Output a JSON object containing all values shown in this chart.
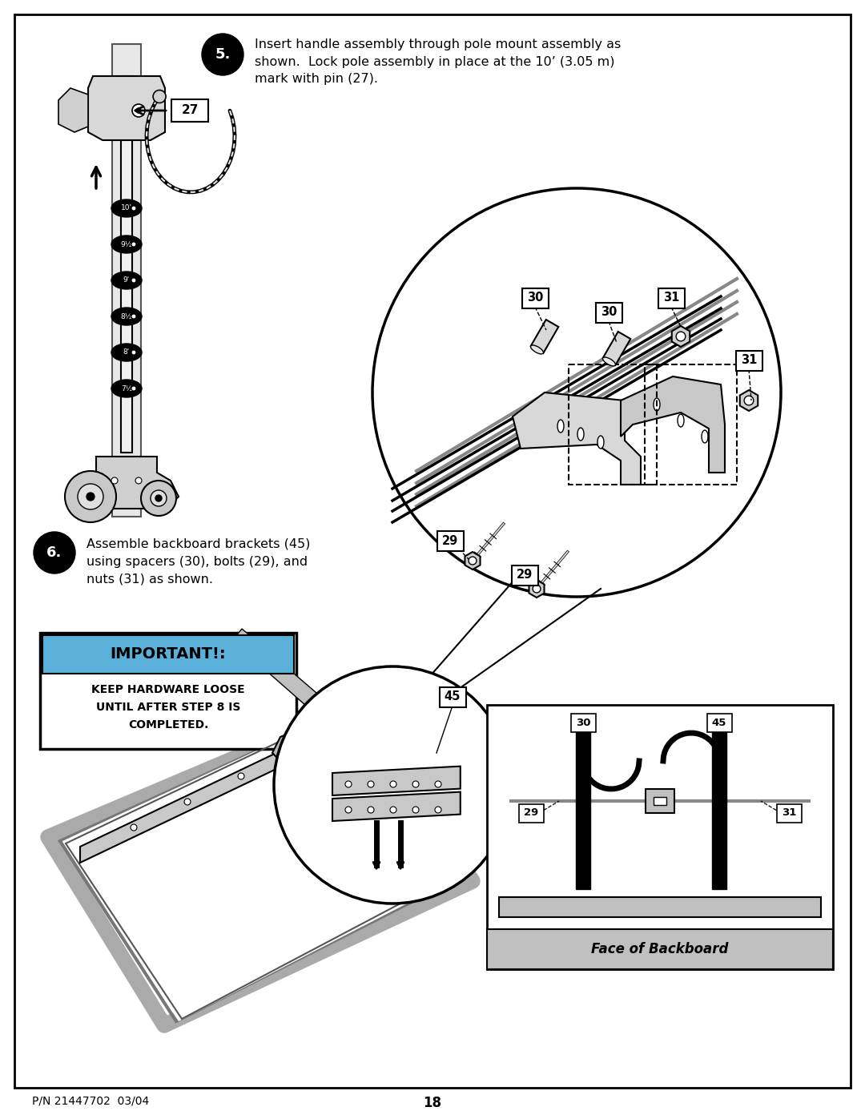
{
  "page_width": 10.8,
  "page_height": 13.97,
  "background_color": "#ffffff",
  "step5_text": "Insert handle assembly through pole mount assembly as\nshown.  Lock pole assembly in place at the 10’ (3.05 m)\nmark with pin (27).",
  "step6_text": "Assemble backboard brackets (45)\nusing spacers (30), bolts (29), and\nnuts (31) as shown.",
  "important_title": "IMPORTANT!:",
  "important_body": "KEEP HARDWARE LOOSE\nUNTIL AFTER STEP 8 IS\nCOMPLETED.",
  "face_of_backboard": "Face of Backboard",
  "footer_left": "P/N 21447702  03/04",
  "footer_center": "18",
  "height_marks": [
    "10'",
    "9½",
    "9'",
    "8½",
    "8'",
    "7½"
  ]
}
